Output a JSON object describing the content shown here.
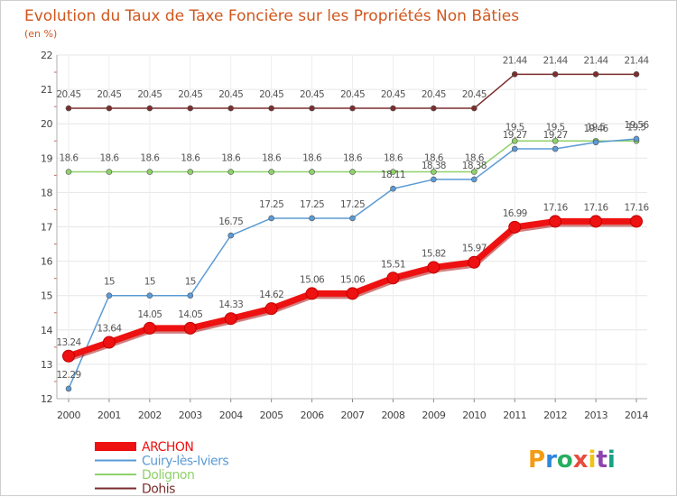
{
  "chart_data": {
    "type": "line",
    "title": "Evolution du Taux de Taxe Foncière sur les Propriétés Non Bâties",
    "subtitle": "(en %)",
    "xlabel": "",
    "ylabel": "",
    "x": [
      "2000",
      "2001",
      "2002",
      "2003",
      "2004",
      "2005",
      "2006",
      "2007",
      "2008",
      "2009",
      "2010",
      "2011",
      "2012",
      "2013",
      "2014"
    ],
    "ylim": [
      12,
      22
    ],
    "yticks": [
      "12",
      "13",
      "14",
      "15",
      "16",
      "17",
      "18",
      "19",
      "20",
      "21",
      "22"
    ],
    "grid": true,
    "legend_position": "bottom-left",
    "series": [
      {
        "name": "ARCHON",
        "color": "#ee1111",
        "values": [
          13.24,
          13.64,
          14.05,
          14.05,
          14.33,
          14.62,
          15.06,
          15.06,
          15.51,
          15.82,
          15.97,
          16.99,
          17.16,
          17.16,
          17.16
        ],
        "labels": [
          "13.24",
          "13.64",
          "14.05",
          "14.05",
          "14.33",
          "14.62",
          "15.06",
          "15.06",
          "15.51",
          "15.82",
          "15.97",
          "16.99",
          "17.16",
          "17.16",
          "17.16"
        ]
      },
      {
        "name": "Cuiry-lès-Iviers",
        "color": "#5b9bd5",
        "values": [
          12.29,
          15,
          15,
          15,
          16.75,
          17.25,
          17.25,
          17.25,
          18.11,
          18.38,
          18.38,
          19.27,
          19.27,
          19.46,
          19.56
        ],
        "labels": [
          "12.29",
          "15",
          "15",
          "15",
          "16.75",
          "17.25",
          "17.25",
          "17.25",
          "18.11",
          "18.38",
          "18.38",
          "19.27",
          "19.27",
          "19.46",
          "19.56"
        ]
      },
      {
        "name": "Dolignon",
        "color": "#8fd16b",
        "values": [
          18.6,
          18.6,
          18.6,
          18.6,
          18.6,
          18.6,
          18.6,
          18.6,
          18.6,
          18.6,
          18.6,
          19.5,
          19.5,
          19.5,
          19.5
        ],
        "labels": [
          "18.6",
          "18.6",
          "18.6",
          "18.6",
          "18.6",
          "18.6",
          "18.6",
          "18.6",
          "18.6",
          "18.6",
          "18.6",
          "19.5",
          "19.5",
          "19.5",
          "19.5"
        ]
      },
      {
        "name": "Dohis",
        "color": "#7b2e2e",
        "values": [
          20.45,
          20.45,
          20.45,
          20.45,
          20.45,
          20.45,
          20.45,
          20.45,
          20.45,
          20.45,
          20.45,
          21.44,
          21.44,
          21.44,
          21.44
        ],
        "labels": [
          "20.45",
          "20.45",
          "20.45",
          "20.45",
          "20.45",
          "20.45",
          "20.45",
          "20.45",
          "20.45",
          "20.45",
          "20.45",
          "21.44",
          "21.44",
          "21.44",
          "21.44"
        ]
      }
    ]
  },
  "brand": {
    "letters": [
      "P",
      "r",
      "o",
      "x",
      "i",
      "t",
      "i"
    ],
    "colors": [
      "#f39c12",
      "#2e86de",
      "#27ae60",
      "#e74c3c",
      "#f1c40f",
      "#8e44ad",
      "#16a085"
    ]
  }
}
